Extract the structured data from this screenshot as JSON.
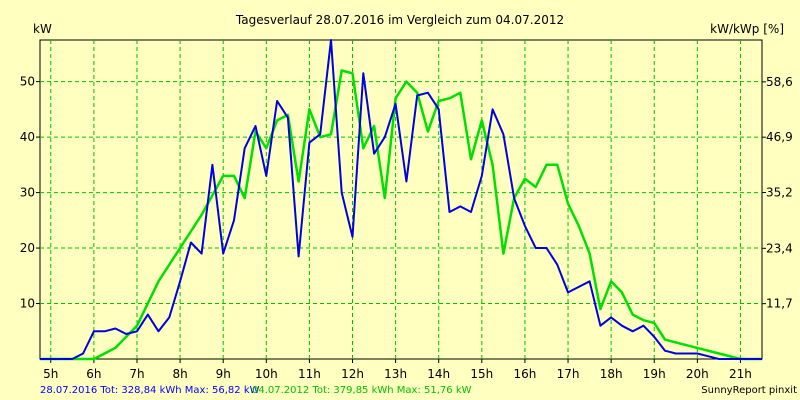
{
  "chart_data": {
    "type": "line",
    "title": "Tagesverlauf 28.07.2016 im Vergleich zum 04.07.2012",
    "ylabel_left": "kW",
    "ylabel_right": "kW/kWp [%]",
    "ylim": [
      0,
      57.5
    ],
    "yticks_left": [
      10,
      20,
      30,
      40,
      50
    ],
    "yticks_right": [
      {
        "value": 11.7,
        "label": "11,7"
      },
      {
        "value": 23.4,
        "label": "23,4"
      },
      {
        "value": 35.2,
        "label": "35,2"
      },
      {
        "value": 46.9,
        "label": "46,9"
      },
      {
        "value": 58.6,
        "label": "58,6"
      }
    ],
    "right_axis_factor": 1.173,
    "xlim": [
      4.75,
      21.5
    ],
    "xticks": [
      {
        "value": 5,
        "label": "5h"
      },
      {
        "value": 6,
        "label": "6h"
      },
      {
        "value": 7,
        "label": "7h"
      },
      {
        "value": 8,
        "label": "8h"
      },
      {
        "value": 9,
        "label": "9h"
      },
      {
        "value": 10,
        "label": "10h"
      },
      {
        "value": 11,
        "label": "11h"
      },
      {
        "value": 12,
        "label": "12h"
      },
      {
        "value": 13,
        "label": "13h"
      },
      {
        "value": 14,
        "label": "14h"
      },
      {
        "value": 15,
        "label": "15h"
      },
      {
        "value": 16,
        "label": "16h"
      },
      {
        "value": 17,
        "label": "17h"
      },
      {
        "value": 18,
        "label": "18h"
      },
      {
        "value": 19,
        "label": "19h"
      },
      {
        "value": 20,
        "label": "20h"
      },
      {
        "value": 21,
        "label": "21h"
      }
    ],
    "grid": true,
    "series": [
      {
        "name": "28.07.2016",
        "color": "#0000e0",
        "points": [
          [
            4.75,
            0
          ],
          [
            5.5,
            0
          ],
          [
            5.75,
            1
          ],
          [
            6,
            5
          ],
          [
            6.25,
            5
          ],
          [
            6.5,
            5.5
          ],
          [
            6.75,
            4.5
          ],
          [
            7,
            5
          ],
          [
            7.25,
            8
          ],
          [
            7.5,
            5
          ],
          [
            7.75,
            7.5
          ],
          [
            8,
            14
          ],
          [
            8.25,
            21
          ],
          [
            8.5,
            19
          ],
          [
            8.75,
            35
          ],
          [
            9,
            19
          ],
          [
            9.25,
            25
          ],
          [
            9.5,
            38
          ],
          [
            9.75,
            42
          ],
          [
            10,
            33
          ],
          [
            10.25,
            46.5
          ],
          [
            10.5,
            43.5
          ],
          [
            10.75,
            18.5
          ],
          [
            11,
            39
          ],
          [
            11.25,
            40.5
          ],
          [
            11.5,
            57.5
          ],
          [
            11.75,
            30
          ],
          [
            12,
            22
          ],
          [
            12.25,
            51.5
          ],
          [
            12.5,
            37
          ],
          [
            12.75,
            40
          ],
          [
            13,
            46
          ],
          [
            13.25,
            32
          ],
          [
            13.5,
            47.5
          ],
          [
            13.75,
            48
          ],
          [
            14,
            45
          ],
          [
            14.25,
            26.5
          ],
          [
            14.5,
            27.5
          ],
          [
            14.75,
            26.5
          ],
          [
            15,
            33
          ],
          [
            15.25,
            45
          ],
          [
            15.5,
            40.5
          ],
          [
            15.75,
            29
          ],
          [
            16,
            24
          ],
          [
            16.25,
            20
          ],
          [
            16.5,
            20
          ],
          [
            16.75,
            17
          ],
          [
            17,
            12
          ],
          [
            17.25,
            13
          ],
          [
            17.5,
            14
          ],
          [
            17.75,
            6
          ],
          [
            18,
            7.5
          ],
          [
            18.25,
            6
          ],
          [
            18.5,
            5
          ],
          [
            18.75,
            6
          ],
          [
            19,
            4
          ],
          [
            19.25,
            1.5
          ],
          [
            19.5,
            1
          ],
          [
            20,
            1
          ],
          [
            20.25,
            0.5
          ],
          [
            20.5,
            0
          ],
          [
            21.5,
            0
          ]
        ]
      },
      {
        "name": "04.07.2012",
        "color": "#00e000",
        "points": [
          [
            4.75,
            0
          ],
          [
            6,
            0
          ],
          [
            6.5,
            2
          ],
          [
            7,
            6
          ],
          [
            7.5,
            14
          ],
          [
            8,
            20
          ],
          [
            8.5,
            26
          ],
          [
            9,
            33
          ],
          [
            9.25,
            33
          ],
          [
            9.5,
            29
          ],
          [
            9.75,
            41
          ],
          [
            10,
            38
          ],
          [
            10.25,
            43
          ],
          [
            10.5,
            44
          ],
          [
            10.75,
            32
          ],
          [
            11,
            45
          ],
          [
            11.25,
            40
          ],
          [
            11.5,
            40.5
          ],
          [
            11.75,
            52
          ],
          [
            12,
            51.5
          ],
          [
            12.25,
            38
          ],
          [
            12.5,
            42
          ],
          [
            12.75,
            29
          ],
          [
            13,
            47
          ],
          [
            13.25,
            50
          ],
          [
            13.5,
            48
          ],
          [
            13.75,
            41
          ],
          [
            14,
            46.5
          ],
          [
            14.25,
            47
          ],
          [
            14.5,
            48
          ],
          [
            14.75,
            36
          ],
          [
            15,
            43
          ],
          [
            15.25,
            35
          ],
          [
            15.5,
            19
          ],
          [
            15.75,
            29
          ],
          [
            16,
            32.5
          ],
          [
            16.25,
            31
          ],
          [
            16.5,
            35
          ],
          [
            16.75,
            35
          ],
          [
            17,
            28
          ],
          [
            17.25,
            24
          ],
          [
            17.5,
            19
          ],
          [
            17.75,
            9
          ],
          [
            18,
            14
          ],
          [
            18.25,
            12
          ],
          [
            18.5,
            8
          ],
          [
            18.75,
            7
          ],
          [
            19,
            6.5
          ],
          [
            19.25,
            3.5
          ],
          [
            19.5,
            3
          ],
          [
            20,
            2
          ],
          [
            20.5,
            1
          ],
          [
            21,
            0
          ],
          [
            21.5,
            0
          ]
        ]
      }
    ]
  },
  "footer": {
    "left_1": "28.07.2016 Tot: 328,84 kWh Max: 56,82 kW",
    "left_2": "04.07.2012 Tot: 379,85 kWh Max: 51,76 kW",
    "right": "SunnyReport pinxit"
  },
  "colors": {
    "background": "#ffffc0",
    "grid": "#00c000",
    "footer_blue": "#0000ff",
    "footer_green": "#00c000"
  }
}
